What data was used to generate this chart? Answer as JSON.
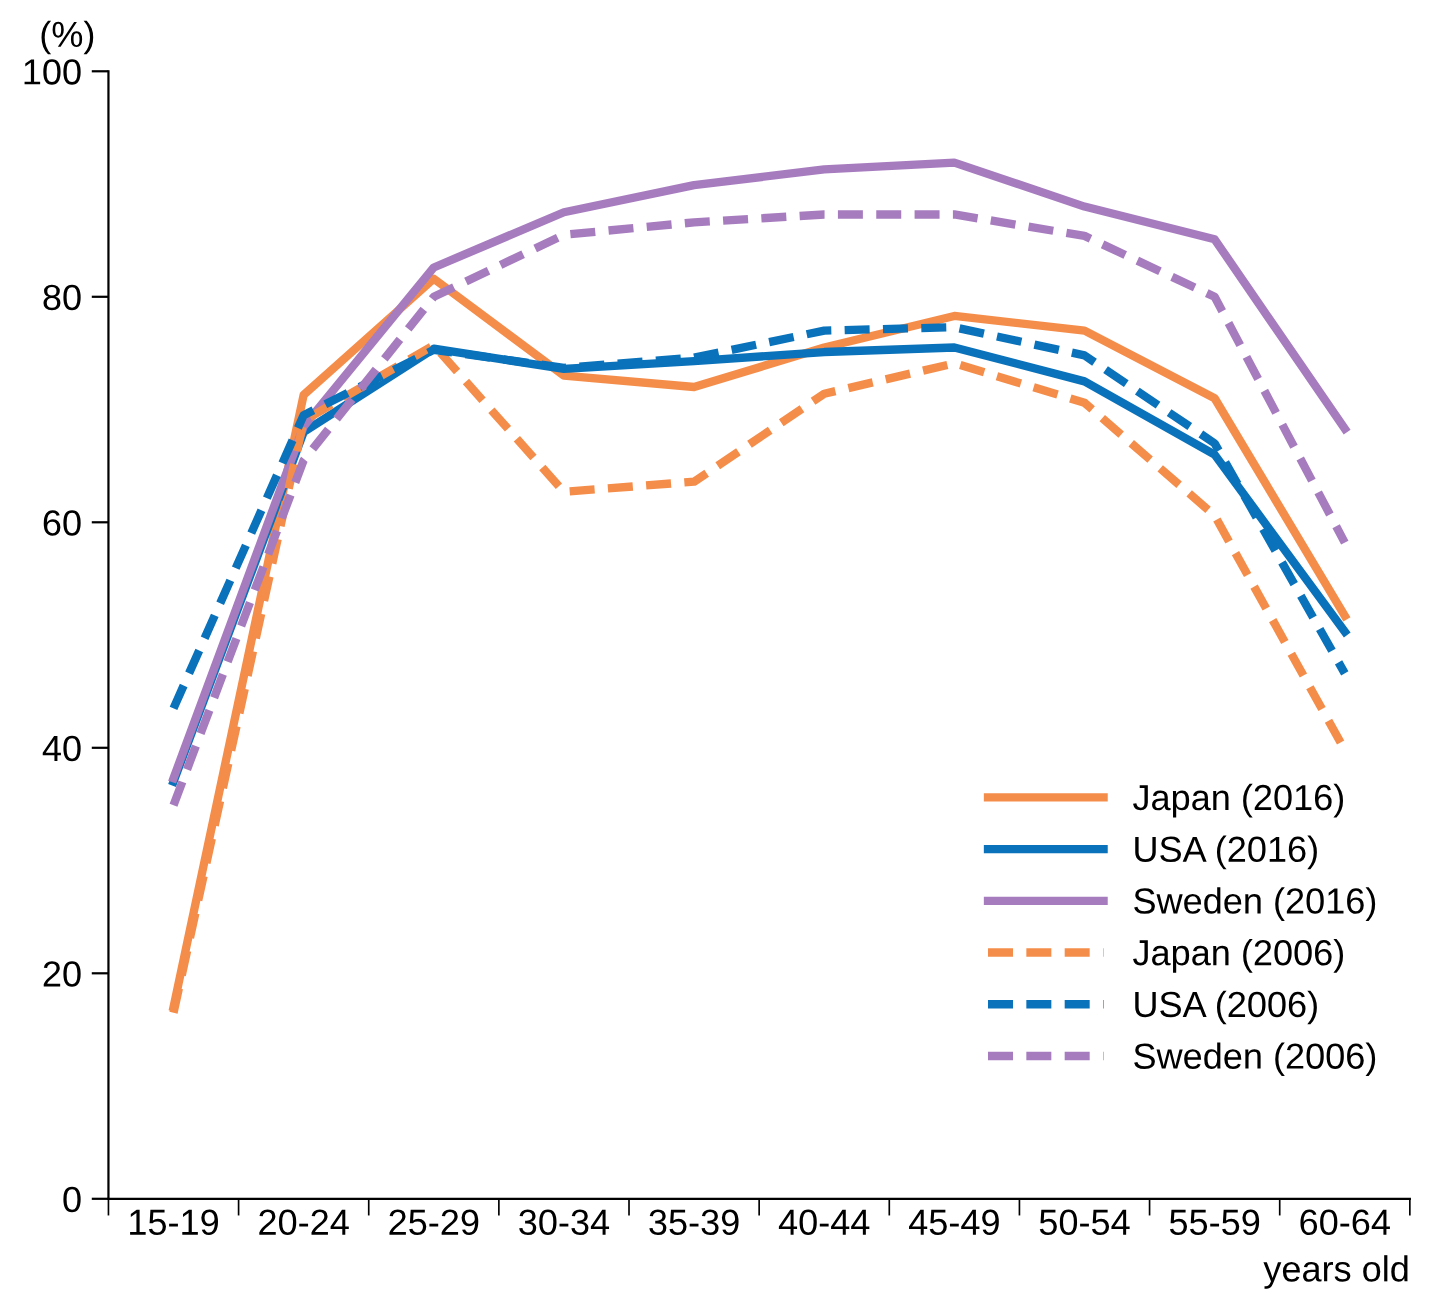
{
  "chart_data": {
    "type": "line",
    "ylabel": "(%)",
    "xlabel": "years old",
    "categories": [
      "15-19",
      "20-24",
      "25-29",
      "30-34",
      "35-39",
      "40-44",
      "45-49",
      "50-54",
      "55-59",
      "60-64"
    ],
    "series": [
      {
        "name": "Japan (2016)",
        "color": "#f58d4a",
        "line_style": "solid",
        "values": [
          17,
          71.3,
          81.6,
          73,
          72,
          75.5,
          78.3,
          77,
          71,
          51.7
        ]
      },
      {
        "name": "USA (2016)",
        "color": "#0a72ba",
        "line_style": "solid",
        "values": [
          37,
          68,
          75.4,
          73.6,
          74.3,
          75.1,
          75.5,
          72.5,
          66,
          50.3
        ]
      },
      {
        "name": "Sweden (2016)",
        "color": "#a77cbf",
        "line_style": "solid",
        "values": [
          37.3,
          68.5,
          82.6,
          87.5,
          89.9,
          91.3,
          91.9,
          88,
          85.1,
          68.3
        ]
      },
      {
        "name": "Japan (2006)",
        "color": "#f58d4a",
        "line_style": "dashed",
        "values": [
          16.5,
          69,
          75.7,
          62.7,
          63.6,
          71.4,
          74.1,
          70.6,
          60.6,
          39.8
        ]
      },
      {
        "name": "USA (2006)",
        "color": "#0a72ba",
        "line_style": "dashed",
        "values": [
          43.5,
          69.5,
          75.3,
          73.7,
          74.6,
          77,
          77.3,
          74.8,
          67,
          46.6
        ]
      },
      {
        "name": "Sweden (2006)",
        "color": "#a77cbf",
        "line_style": "dashed",
        "values": [
          34.9,
          65.5,
          80,
          85.5,
          86.6,
          87.3,
          87.3,
          85.4,
          80,
          58.2
        ]
      }
    ],
    "ylim": [
      0,
      100
    ],
    "yticks": [
      0,
      20,
      40,
      60,
      80,
      100
    ],
    "grid": false,
    "legend": "bottom right",
    "marker": "none"
  }
}
